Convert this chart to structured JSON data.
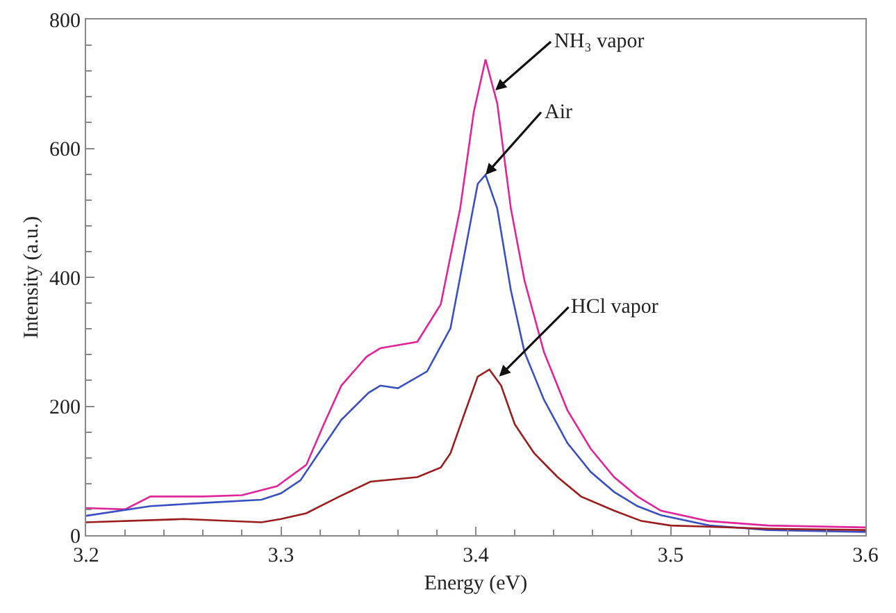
{
  "chart_data": {
    "type": "line",
    "xlabel": "Energy (eV)",
    "ylabel": "Intensity (a.u.)",
    "xlim": [
      3.2,
      3.6
    ],
    "xticks": [
      3.2,
      3.3,
      3.4,
      3.5,
      3.6
    ],
    "ylim": [
      0,
      800
    ],
    "yticks": [
      0,
      200,
      400,
      600,
      800
    ],
    "grid": false,
    "marker": "none",
    "line_style": "solid",
    "series": [
      {
        "color": "#e0249a",
        "x": [
          3.2,
          3.22,
          3.233,
          3.26,
          3.28,
          3.298,
          3.313,
          3.322,
          3.331,
          3.344,
          3.351,
          3.37,
          3.382,
          3.392,
          3.399,
          3.405,
          3.411,
          3.418,
          3.425,
          3.435,
          3.447,
          3.459,
          3.471,
          3.483,
          3.495,
          3.519,
          3.55,
          3.6
        ],
        "values": [
          42,
          40,
          60,
          60,
          62,
          76,
          109,
          172,
          232,
          277,
          290,
          300,
          358,
          507,
          657,
          738,
          670,
          507,
          395,
          284,
          194,
          134,
          90,
          60,
          38,
          22,
          15,
          12
        ]
      },
      {
        "color": "#3a4fc0",
        "x": [
          3.2,
          3.233,
          3.26,
          3.29,
          3.3,
          3.31,
          3.32,
          3.331,
          3.345,
          3.351,
          3.36,
          3.375,
          3.387,
          3.394,
          3.401,
          3.405,
          3.411,
          3.418,
          3.425,
          3.435,
          3.447,
          3.459,
          3.471,
          3.483,
          3.495,
          3.52,
          3.55,
          3.6
        ],
        "values": [
          30,
          45,
          50,
          55,
          65,
          85,
          130,
          179,
          221,
          232,
          228,
          254,
          321,
          433,
          545,
          559,
          507,
          380,
          284,
          210,
          143,
          98,
          67,
          45,
          31,
          15,
          8,
          5
        ]
      },
      {
        "color": "#9b1c1c",
        "x": [
          3.2,
          3.25,
          3.29,
          3.3,
          3.313,
          3.33,
          3.346,
          3.37,
          3.382,
          3.387,
          3.394,
          3.401,
          3.407,
          3.413,
          3.42,
          3.43,
          3.442,
          3.454,
          3.471,
          3.485,
          3.5,
          3.55,
          3.6
        ],
        "values": [
          20,
          25,
          20,
          25,
          34,
          60,
          83,
          90,
          105,
          127,
          187,
          246,
          257,
          232,
          172,
          127,
          90,
          60,
          38,
          22,
          15,
          10,
          8
        ]
      }
    ],
    "annotations": [
      {
        "text": "NH₃ vapor",
        "x": 3.41,
        "y": 690
      },
      {
        "text": "Air",
        "x": 3.405,
        "y": 559
      },
      {
        "text": "HCl vapor",
        "x": 3.412,
        "y": 246
      }
    ]
  }
}
